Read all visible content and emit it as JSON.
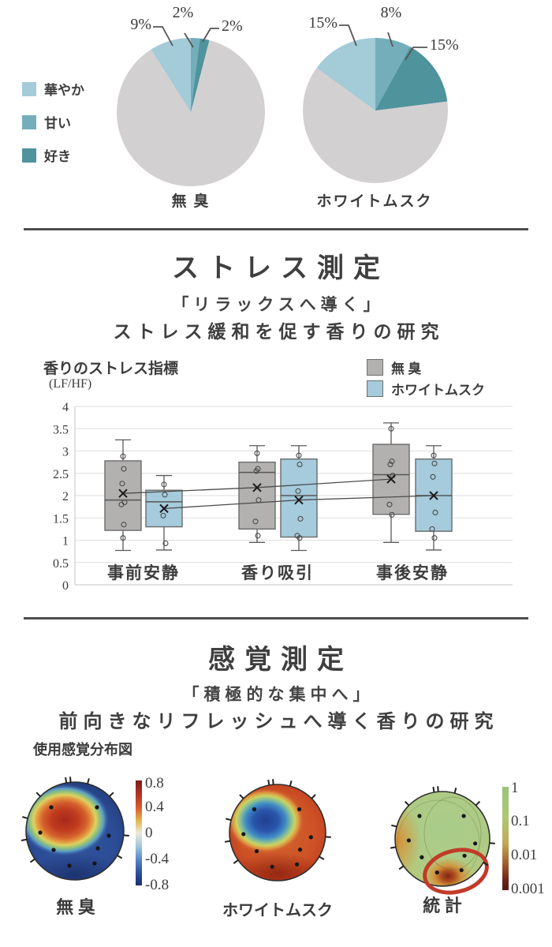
{
  "palette": {
    "hanayaka": "#a3cbd8",
    "amai": "#74aebb",
    "suki": "#4f949c",
    "other_gray": "#d3d0d2",
    "box_gray": "#b3b0b0",
    "box_blue": "#a5cbdc",
    "annotation_red": "#c23a28"
  },
  "sections": {
    "stress": {
      "title": "ストレス測定",
      "quote": "「リラックスへ導く」",
      "subtitle": "ストレス緩和を促す香りの研究",
      "axis_title": "香りのストレス指標",
      "axis_unit": "(LF/HF)"
    },
    "sense": {
      "title": "感覚測定",
      "quote": "「積極的な集中へ」",
      "subtitle": "前向きなリフレッシュへ導く香りの研究",
      "chart_label": "使用感覚分布図"
    }
  },
  "chart_data": [
    {
      "type": "pie",
      "title": "無 臭",
      "legend": [
        {
          "label": "華やか",
          "color": "#a3cbd8"
        },
        {
          "label": "甘い",
          "color": "#74aebb"
        },
        {
          "label": "好き",
          "color": "#4f949c"
        }
      ],
      "slices": [
        {
          "label": "華やか",
          "value": 9,
          "color": "#a3cbd8"
        },
        {
          "label": "甘い",
          "value": 2,
          "color": "#74aebb"
        },
        {
          "label": "好き",
          "value": 2,
          "color": "#4f949c"
        },
        {
          "label": "",
          "value": 87,
          "color": "#d3d0d2"
        }
      ],
      "callouts": [
        "9%",
        "2%",
        "2%"
      ]
    },
    {
      "type": "pie",
      "title": "ホワイトムスク",
      "slices": [
        {
          "label": "華やか",
          "value": 15,
          "color": "#a3cbd8"
        },
        {
          "label": "甘い",
          "value": 8,
          "color": "#74aebb"
        },
        {
          "label": "好き",
          "value": 15,
          "color": "#4f949c"
        },
        {
          "label": "",
          "value": 62,
          "color": "#d3d0d2"
        }
      ],
      "callouts": [
        "15%",
        "8%",
        "15%"
      ]
    },
    {
      "type": "boxplot",
      "title": "香りのストレス指標",
      "ylabel": "(LF/HF)",
      "ylim": [
        0,
        4
      ],
      "ytick_step": 0.5,
      "grid": true,
      "categories": [
        "事前安静",
        "香り吸引",
        "事後安静"
      ],
      "legend": [
        {
          "label": "無 臭",
          "color": "#b3b0b0"
        },
        {
          "label": "ホワイトムスク",
          "color": "#a5cbdc"
        }
      ],
      "series": [
        {
          "name": "無臭",
          "color": "#b3b0b0",
          "boxes": [
            {
              "whisker_low": 0.77,
              "q1": 1.22,
              "median": 1.9,
              "q3": 2.78,
              "whisker_high": 3.25,
              "mean": 2.05,
              "points": [
                2.88,
                2.6,
                2.27,
                1.85,
                1.8,
                1.35,
                1.05
              ]
            },
            {
              "whisker_low": 0.95,
              "q1": 1.25,
              "median": 2.52,
              "q3": 2.75,
              "whisker_high": 3.12,
              "mean": 2.18,
              "points": [
                2.95,
                2.6,
                2.55,
                1.9,
                1.42,
                1.1
              ]
            },
            {
              "whisker_low": 0.95,
              "q1": 1.58,
              "median": 2.47,
              "q3": 3.15,
              "whisker_high": 3.63,
              "mean": 2.37,
              "points": [
                3.5,
                2.77,
                2.7,
                2.45,
                1.8,
                1.57
              ]
            }
          ]
        },
        {
          "name": "ホワイトムスク",
          "color": "#a5cbdc",
          "boxes": [
            {
              "whisker_low": 0.78,
              "q1": 1.3,
              "median": 1.86,
              "q3": 2.12,
              "whisker_high": 2.45,
              "mean": 1.71,
              "points": [
                2.25,
                2.02,
                1.55,
                0.93
              ]
            },
            {
              "whisker_low": 0.77,
              "q1": 1.07,
              "median": 2.0,
              "q3": 2.82,
              "whisker_high": 3.12,
              "mean": 1.9,
              "points": [
                2.9,
                2.7,
                2.1,
                1.48,
                1.1,
                1.05
              ]
            },
            {
              "whisker_low": 0.78,
              "q1": 1.2,
              "median": 2.0,
              "q3": 2.82,
              "whisker_high": 3.12,
              "mean": 2.0,
              "points": [
                2.9,
                2.72,
                2.42,
                1.62,
                1.25,
                1.05
              ]
            }
          ]
        }
      ]
    },
    {
      "type": "heatmap",
      "subtype": "eeg-topomap",
      "maps": [
        {
          "label": "無 臭",
          "pattern": "red-orange hotspot over left-frontal region, blue elsewhere",
          "colorbar": {
            "ticks": [
              "0.8",
              "0.4",
              "0",
              "-0.4",
              "-0.8"
            ]
          }
        },
        {
          "label": "ホワイトムスク",
          "pattern": "blue cool region over left-frontal area, red-orange around posterior rim"
        },
        {
          "label": "統 計",
          "pattern": "yellow-green map with orange left rim and posterior hotspot; red ellipse marks right-posterior significant region",
          "colorbar": {
            "ticks": [
              "1",
              "0.1",
              "0.01",
              "0.001"
            ]
          }
        }
      ]
    }
  ]
}
